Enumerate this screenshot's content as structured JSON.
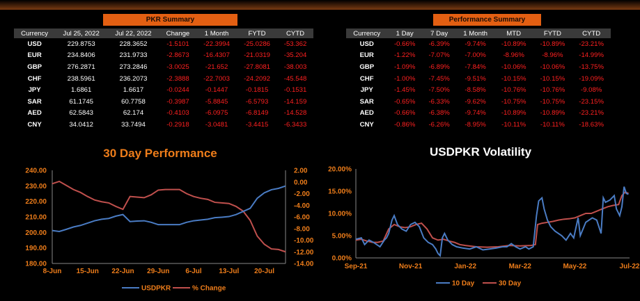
{
  "pkr_summary": {
    "title": "PKR Summary",
    "columns": [
      "Currency",
      "Jul 25, 2022",
      "Jul 22, 2022",
      "Change",
      "1 Month",
      "FYTD",
      "CYTD"
    ],
    "rows": [
      [
        "USD",
        "229.8753",
        "228.3652",
        "-1.5101",
        "-22.3994",
        "-25.0286",
        "-53.362"
      ],
      [
        "EUR",
        "234.8406",
        "231.9733",
        "-2.8673",
        "-16.4307",
        "-21.0319",
        "-35.204"
      ],
      [
        "GBP",
        "276.2871",
        "273.2846",
        "-3.0025",
        "-21.652",
        "-27.8081",
        "-38.003"
      ],
      [
        "CHF",
        "238.5961",
        "236.2073",
        "-2.3888",
        "-22.7003",
        "-24.2092",
        "-45.548"
      ],
      [
        "JPY",
        "1.6861",
        "1.6617",
        "-0.0244",
        "-0.1447",
        "-0.1815",
        "-0.1531"
      ],
      [
        "SAR",
        "61.1745",
        "60.7758",
        "-0.3987",
        "-5.8845",
        "-6.5793",
        "-14.159"
      ],
      [
        "AED",
        "62.5843",
        "62.174",
        "-0.4103",
        "-6.0975",
        "-6.8149",
        "-14.528"
      ],
      [
        "CNY",
        "34.0412",
        "33.7494",
        "-0.2918",
        "-3.0481",
        "-3.4415",
        "-6.3433"
      ]
    ]
  },
  "performance_summary": {
    "title": "Performance Summary",
    "columns": [
      "Currency",
      "1 Day",
      "7 Day",
      "1 Month",
      "MTD",
      "FYTD",
      "CYTD"
    ],
    "rows": [
      [
        "USD",
        "-0.66%",
        "-6.39%",
        "-9.74%",
        "-10.89%",
        "-10.89%",
        "-23.21%"
      ],
      [
        "EUR",
        "-1.22%",
        "-7.07%",
        "-7.00%",
        "-8.96%",
        "-8.96%",
        "-14.99%"
      ],
      [
        "GBP",
        "-1.09%",
        "-6.89%",
        "-7.84%",
        "-10.06%",
        "-10.06%",
        "-13.75%"
      ],
      [
        "CHF",
        "-1.00%",
        "-7.45%",
        "-9.51%",
        "-10.15%",
        "-10.15%",
        "-19.09%"
      ],
      [
        "JPY",
        "-1.45%",
        "-7.50%",
        "-8.58%",
        "-10.76%",
        "-10.76%",
        "-9.08%"
      ],
      [
        "SAR",
        "-0.65%",
        "-6.33%",
        "-9.62%",
        "-10.75%",
        "-10.75%",
        "-23.15%"
      ],
      [
        "AED",
        "-0.66%",
        "-6.38%",
        "-9.74%",
        "-10.89%",
        "-10.89%",
        "-23.21%"
      ],
      [
        "CNY",
        "-0.86%",
        "-6.26%",
        "-8.95%",
        "-10.11%",
        "-10.11%",
        "-18.63%"
      ]
    ]
  },
  "colors": {
    "accent": "#ee7d1a",
    "banner": "#e35f12",
    "negative": "#ff2020",
    "blue": "#4a7cc4",
    "red": "#c0504d"
  },
  "chart_data": [
    {
      "type": "line",
      "title": "30 Day Performance",
      "x": [
        "8-Jun",
        "9-Jun",
        "10-Jun",
        "13-Jun",
        "14-Jun",
        "15-Jun",
        "16-Jun",
        "17-Jun",
        "20-Jun",
        "21-Jun",
        "22-Jun",
        "23-Jun",
        "24-Jun",
        "27-Jun",
        "28-Jun",
        "29-Jun",
        "30-Jun",
        "1-Jul",
        "4-Jul",
        "5-Jul",
        "6-Jul",
        "7-Jul",
        "8-Jul",
        "11-Jul",
        "12-Jul",
        "13-Jul",
        "14-Jul",
        "15-Jul",
        "18-Jul",
        "19-Jul",
        "20-Jul",
        "21-Jul",
        "22-Jul",
        "25-Jul"
      ],
      "x_ticks": [
        "8-Jun",
        "15-Jun",
        "22-Jun",
        "29-Jun",
        "6-Jul",
        "13-Jul",
        "20-Jul"
      ],
      "series": [
        {
          "name": "USDPKR",
          "axis": "left",
          "values": [
            201.2,
            200.6,
            202.0,
            203.5,
            204.5,
            206.0,
            207.5,
            208.5,
            209.0,
            210.5,
            211.5,
            207.0,
            207.3,
            207.5,
            206.5,
            205.0,
            205.0,
            205.0,
            205.0,
            206.5,
            207.5,
            208.0,
            208.5,
            209.5,
            209.8,
            210.2,
            211.5,
            213.5,
            215.5,
            222.0,
            225.5,
            227.5,
            228.37,
            229.88
          ]
        },
        {
          "name": "% Change",
          "axis": "right",
          "values": [
            -0.3,
            0.1,
            -0.6,
            -1.3,
            -1.8,
            -2.5,
            -3.1,
            -3.4,
            -3.6,
            -4.2,
            -4.7,
            -2.5,
            -2.6,
            -2.7,
            -2.2,
            -1.4,
            -1.3,
            -1.3,
            -1.3,
            -2.0,
            -2.5,
            -2.8,
            -3.0,
            -3.5,
            -3.6,
            -3.7,
            -4.2,
            -5.0,
            -6.6,
            -9.3,
            -10.7,
            -11.5,
            -11.6,
            -12.0
          ]
        }
      ],
      "y_left": {
        "min": 180,
        "max": 240,
        "ticks": [
          "180.00",
          "190.00",
          "200.00",
          "210.00",
          "220.00",
          "230.00",
          "240.00"
        ]
      },
      "y_right": {
        "min": -14,
        "max": 2,
        "ticks": [
          "-14.00",
          "-12.00",
          "-10.00",
          "-8.00",
          "-6.00",
          "-4.00",
          "-2.00",
          "0.00",
          "2.00"
        ]
      },
      "legend_position": "bottom"
    },
    {
      "type": "line",
      "title": "USDPKR Volatility",
      "x_ticks": [
        "Sep-21",
        "Nov-21",
        "Jan-22",
        "Mar-22",
        "May-22",
        "Jul-22"
      ],
      "series": [
        {
          "name": "10 Day",
          "points": [
            [
              0.0,
              4.2
            ],
            [
              0.05,
              4.5
            ],
            [
              0.08,
              3.0
            ],
            [
              0.12,
              4.0
            ],
            [
              0.16,
              3.5
            ],
            [
              0.22,
              2.5
            ],
            [
              0.26,
              4.0
            ],
            [
              0.28,
              4.5
            ],
            [
              0.3,
              5.5
            ],
            [
              0.33,
              8.5
            ],
            [
              0.35,
              9.5
            ],
            [
              0.38,
              7.5
            ],
            [
              0.42,
              6.5
            ],
            [
              0.46,
              6.0
            ],
            [
              0.5,
              7.5
            ],
            [
              0.54,
              8.0
            ],
            [
              0.58,
              7.0
            ],
            [
              0.62,
              4.5
            ],
            [
              0.66,
              3.5
            ],
            [
              0.7,
              3.0
            ],
            [
              0.73,
              2.0
            ],
            [
              0.75,
              1.0
            ],
            [
              0.77,
              0.5
            ],
            [
              0.79,
              4.5
            ],
            [
              0.81,
              5.5
            ],
            [
              0.84,
              4.0
            ],
            [
              0.88,
              3.0
            ],
            [
              0.92,
              2.5
            ],
            [
              0.98,
              2.2
            ],
            [
              1.04,
              2.0
            ],
            [
              1.1,
              2.5
            ],
            [
              1.16,
              1.8
            ],
            [
              1.22,
              2.0
            ],
            [
              1.28,
              2.2
            ],
            [
              1.34,
              2.5
            ],
            [
              1.38,
              2.5
            ],
            [
              1.42,
              3.2
            ],
            [
              1.46,
              2.5
            ],
            [
              1.5,
              2.0
            ],
            [
              1.55,
              2.5
            ],
            [
              1.58,
              2.0
            ],
            [
              1.62,
              2.5
            ],
            [
              1.65,
              9.5
            ],
            [
              1.67,
              12.8
            ],
            [
              1.7,
              13.5
            ],
            [
              1.72,
              11.0
            ],
            [
              1.75,
              8.5
            ],
            [
              1.78,
              7.0
            ],
            [
              1.82,
              6.0
            ],
            [
              1.88,
              5.0
            ],
            [
              1.92,
              4.0
            ],
            [
              1.96,
              5.5
            ],
            [
              1.99,
              4.5
            ],
            [
              2.03,
              9.0
            ],
            [
              2.05,
              5.0
            ],
            [
              2.1,
              8.0
            ],
            [
              2.16,
              9.0
            ],
            [
              2.2,
              8.5
            ],
            [
              2.24,
              5.5
            ],
            [
              2.26,
              13.5
            ],
            [
              2.28,
              12.5
            ],
            [
              2.32,
              13.0
            ],
            [
              2.36,
              14.0
            ],
            [
              2.38,
              11.0
            ],
            [
              2.41,
              9.5
            ],
            [
              2.43,
              11.5
            ],
            [
              2.45,
              16.0
            ],
            [
              2.47,
              14.5
            ],
            [
              2.49,
              14.3
            ]
          ]
        },
        {
          "name": "30 Day",
          "points": [
            [
              0.0,
              4.0
            ],
            [
              0.05,
              4.2
            ],
            [
              0.1,
              3.8
            ],
            [
              0.15,
              3.5
            ],
            [
              0.2,
              3.5
            ],
            [
              0.25,
              3.8
            ],
            [
              0.3,
              6.5
            ],
            [
              0.35,
              7.5
            ],
            [
              0.4,
              7.0
            ],
            [
              0.45,
              6.8
            ],
            [
              0.5,
              7.0
            ],
            [
              0.55,
              7.5
            ],
            [
              0.6,
              7.8
            ],
            [
              0.65,
              6.5
            ],
            [
              0.7,
              4.5
            ],
            [
              0.75,
              4.0
            ],
            [
              0.8,
              4.2
            ],
            [
              0.85,
              3.8
            ],
            [
              0.9,
              3.5
            ],
            [
              0.95,
              3.0
            ],
            [
              1.0,
              2.8
            ],
            [
              1.1,
              2.5
            ],
            [
              1.2,
              2.4
            ],
            [
              1.3,
              2.5
            ],
            [
              1.4,
              2.8
            ],
            [
              1.5,
              2.7
            ],
            [
              1.6,
              2.8
            ],
            [
              1.64,
              3.0
            ],
            [
              1.66,
              7.5
            ],
            [
              1.7,
              7.8
            ],
            [
              1.75,
              8.0
            ],
            [
              1.8,
              8.2
            ],
            [
              1.85,
              8.5
            ],
            [
              1.9,
              8.7
            ],
            [
              1.95,
              8.8
            ],
            [
              2.0,
              9.0
            ],
            [
              2.05,
              9.5
            ],
            [
              2.1,
              10.0
            ],
            [
              2.15,
              10.0
            ],
            [
              2.2,
              10.5
            ],
            [
              2.25,
              11.0
            ],
            [
              2.3,
              11.5
            ],
            [
              2.35,
              11.8
            ],
            [
              2.4,
              12.0
            ],
            [
              2.43,
              14.0
            ],
            [
              2.46,
              14.8
            ],
            [
              2.49,
              14.5
            ]
          ]
        }
      ],
      "y": {
        "min": 0,
        "max": 20,
        "ticks": [
          "0.00%",
          "5.00%",
          "10.00%",
          "15.00%",
          "20.00%"
        ]
      },
      "x_scale_note": "x in months since Sep-21 divided by 4 (0 = Sep-21, 2.5 = Jul-22)",
      "legend_position": "bottom"
    }
  ]
}
